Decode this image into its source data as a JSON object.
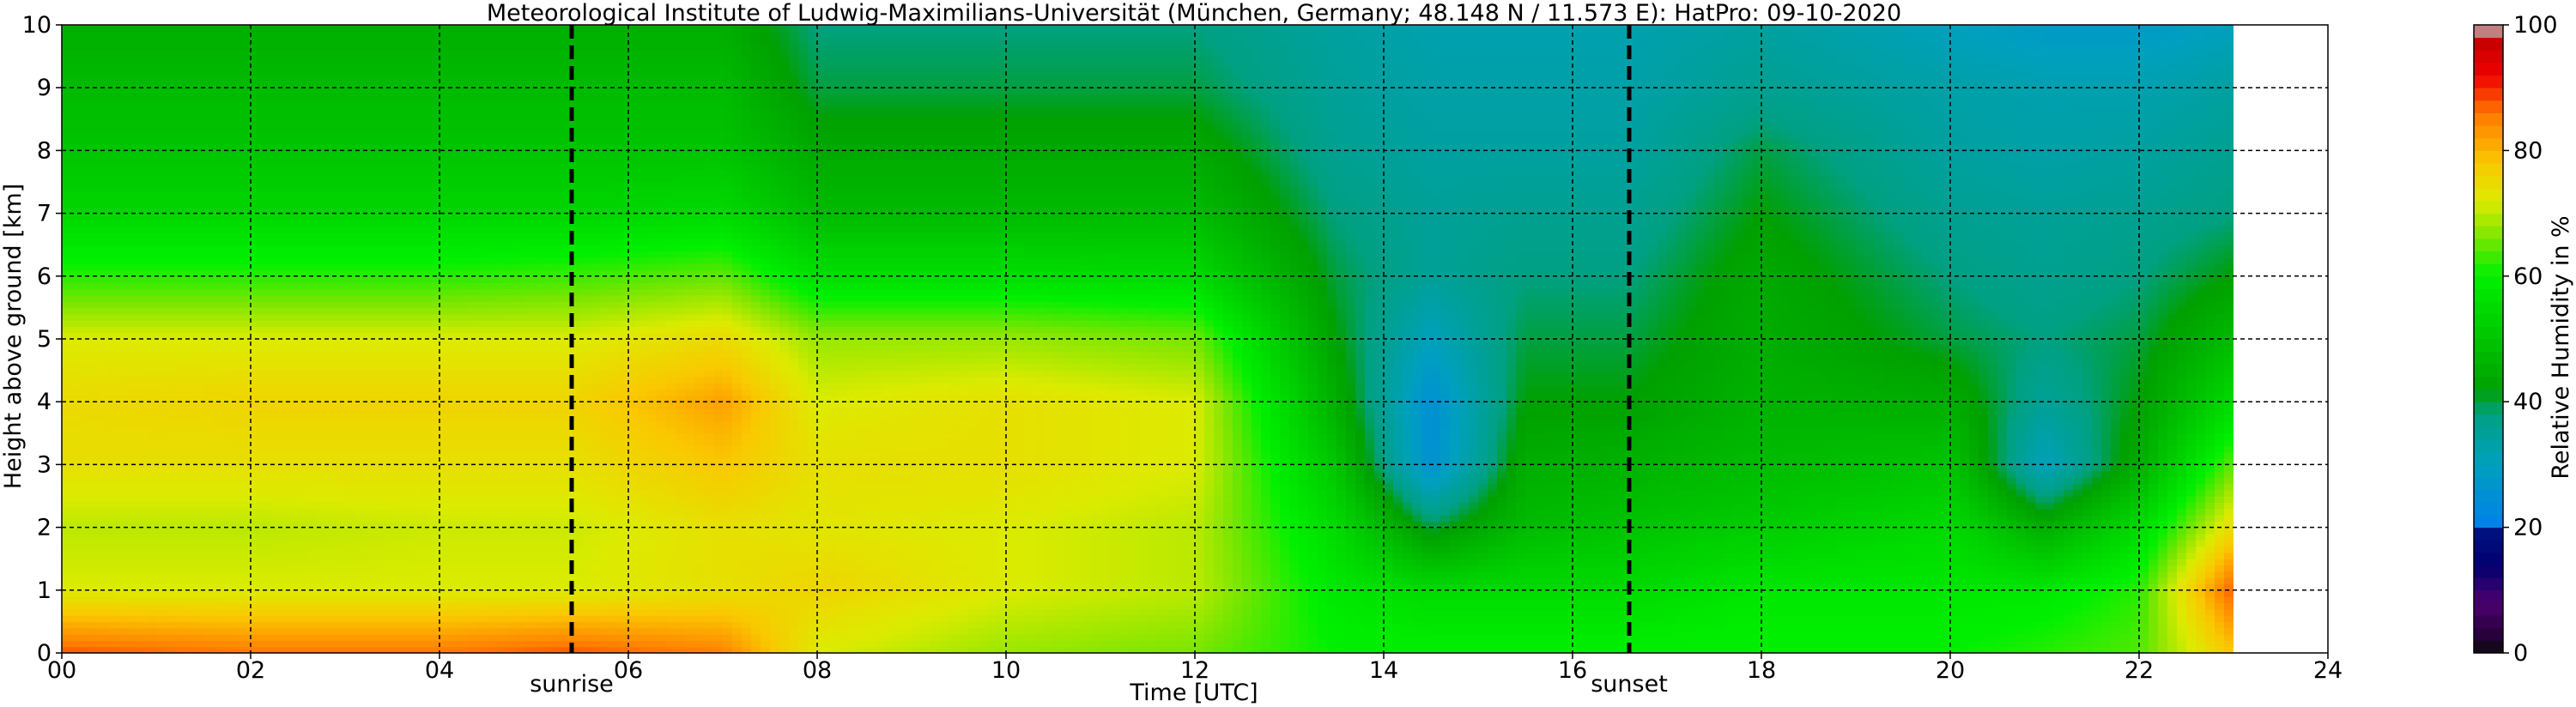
{
  "chart_data": {
    "type": "heatmap",
    "title": "Meteorological Institute of Ludwig-Maximilians-Universität (München, Germany; 48.148 N / 11.573 E):    HatPro: 09-10-2020",
    "xlabel": "Time [UTC]",
    "ylabel": "Height above ground [km]",
    "xlim": [
      0,
      24
    ],
    "ylim": [
      0,
      10
    ],
    "x_ticks": [
      "00",
      "02",
      "04",
      "06",
      "08",
      "10",
      "12",
      "14",
      "16",
      "18",
      "20",
      "22",
      "24"
    ],
    "y_ticks": [
      "0",
      "1",
      "2",
      "3",
      "4",
      "5",
      "6",
      "7",
      "8",
      "9",
      "10"
    ],
    "grid": true,
    "data_end_hour": 23.0,
    "vertical_markers": [
      {
        "label": "sunrise",
        "x": 5.4
      },
      {
        "label": "sunset",
        "x": 16.6
      }
    ],
    "colorbar": {
      "label": "Relative Humidity in %",
      "range": [
        0,
        100
      ],
      "ticks": [
        "0",
        "20",
        "40",
        "60",
        "80",
        "100"
      ]
    },
    "humidity_profile_points": [
      {
        "t": 0.0,
        "rh": [
          88,
          72,
          70,
          74,
          75,
          72,
          62,
          54,
          50,
          48,
          45
        ]
      },
      {
        "t": 2.0,
        "rh": [
          86,
          72,
          70,
          74,
          76,
          72,
          62,
          54,
          50,
          48,
          45
        ]
      },
      {
        "t": 4.0,
        "rh": [
          86,
          72,
          71,
          74,
          76,
          72,
          62,
          54,
          50,
          48,
          45
        ]
      },
      {
        "t": 5.4,
        "rh": [
          88,
          72,
          71,
          74,
          76,
          72,
          63,
          54,
          50,
          48,
          45
        ]
      },
      {
        "t": 7.0,
        "rh": [
          85,
          74,
          74,
          78,
          82,
          75,
          65,
          55,
          50,
          48,
          45
        ]
      },
      {
        "t": 8.0,
        "rh": [
          72,
          76,
          73,
          74,
          72,
          68,
          56,
          48,
          44,
          40,
          38
        ]
      },
      {
        "t": 10.0,
        "rh": [
          68,
          72,
          72,
          74,
          74,
          68,
          56,
          48,
          44,
          40,
          38
        ]
      },
      {
        "t": 12.0,
        "rh": [
          66,
          70,
          70,
          72,
          72,
          66,
          55,
          48,
          44,
          40,
          38
        ]
      },
      {
        "t": 13.5,
        "rh": [
          60,
          58,
          55,
          50,
          45,
          42,
          40,
          38,
          36,
          35,
          34
        ]
      },
      {
        "t": 14.5,
        "rh": [
          60,
          55,
          40,
          25,
          25,
          30,
          35,
          35,
          34,
          33,
          32
        ]
      },
      {
        "t": 15.5,
        "rh": [
          60,
          55,
          48,
          45,
          42,
          40,
          38,
          36,
          34,
          33,
          32
        ]
      },
      {
        "t": 16.6,
        "rh": [
          60,
          55,
          50,
          46,
          42,
          40,
          38,
          36,
          34,
          33,
          32
        ]
      },
      {
        "t": 18.0,
        "rh": [
          60,
          58,
          52,
          48,
          46,
          45,
          44,
          42,
          40,
          36,
          34
        ]
      },
      {
        "t": 20.0,
        "rh": [
          60,
          58,
          55,
          50,
          45,
          40,
          38,
          36,
          34,
          33,
          30
        ]
      },
      {
        "t": 21.0,
        "rh": [
          62,
          58,
          45,
          30,
          35,
          38,
          36,
          35,
          33,
          32,
          28
        ]
      },
      {
        "t": 22.0,
        "rh": [
          64,
          62,
          55,
          45,
          42,
          40,
          38,
          36,
          34,
          32,
          28
        ]
      },
      {
        "t": 23.0,
        "rh": [
          78,
          88,
          75,
          65,
          55,
          48,
          42,
          38,
          36,
          34,
          30
        ]
      }
    ]
  }
}
